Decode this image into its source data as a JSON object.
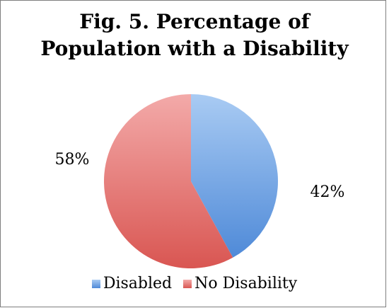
{
  "chart_data": {
    "type": "pie",
    "title_lines": [
      "Fig. 5. Percentage of",
      "Population with a Disability"
    ],
    "slices": [
      {
        "name": "Disabled",
        "value": 42,
        "label": "42%",
        "color_light": "#a9cbf3",
        "color_dark": "#4f8ad8"
      },
      {
        "name": "No Disability",
        "value": 58,
        "label": "58%",
        "color_light": "#f3aaa9",
        "color_dark": "#d95652"
      }
    ],
    "legend_position": "bottom"
  },
  "colors": {
    "border": "#7f7f7f"
  }
}
